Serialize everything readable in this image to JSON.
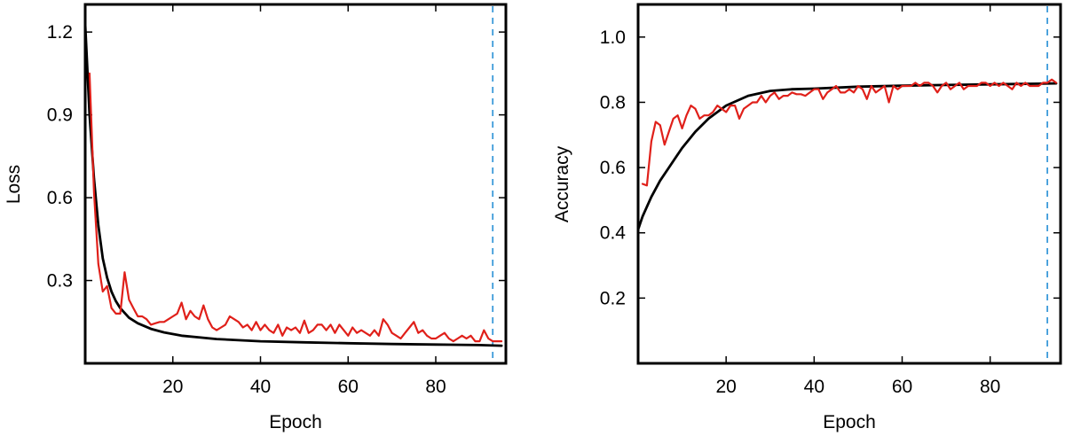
{
  "chart_data": [
    {
      "type": "line",
      "xlabel": "Epoch",
      "ylabel": "Loss",
      "xlim": [
        0,
        96
      ],
      "ylim": [
        0.0,
        1.3
      ],
      "xticks": [
        20,
        40,
        60,
        80
      ],
      "yticks": [
        0.3,
        0.6,
        0.9,
        1.2
      ],
      "vline_x": 93,
      "vline_color": "#3b9ad9",
      "series": [
        {
          "color": "#000000",
          "x": [
            0,
            1,
            2,
            3,
            4,
            5,
            6,
            7,
            8,
            10,
            12,
            15,
            18,
            22,
            30,
            40,
            50,
            60,
            70,
            80,
            90,
            95
          ],
          "values": [
            1.23,
            0.9,
            0.67,
            0.5,
            0.38,
            0.31,
            0.26,
            0.225,
            0.2,
            0.165,
            0.145,
            0.125,
            0.112,
            0.1,
            0.088,
            0.08,
            0.076,
            0.073,
            0.07,
            0.068,
            0.066,
            0.064
          ]
        },
        {
          "color": "#e0201a",
          "x": [
            1,
            2,
            3,
            4,
            5,
            6,
            7,
            8,
            9,
            10,
            11,
            12,
            13,
            14,
            15,
            16,
            17,
            18,
            19,
            20,
            21,
            22,
            23,
            24,
            25,
            26,
            27,
            28,
            29,
            30,
            31,
            32,
            33,
            34,
            35,
            36,
            37,
            38,
            39,
            40,
            41,
            42,
            43,
            44,
            45,
            46,
            47,
            48,
            49,
            50,
            51,
            52,
            53,
            54,
            55,
            56,
            57,
            58,
            59,
            60,
            61,
            62,
            63,
            64,
            65,
            66,
            67,
            68,
            69,
            70,
            71,
            72,
            73,
            74,
            75,
            76,
            77,
            78,
            79,
            80,
            81,
            82,
            83,
            84,
            85,
            86,
            87,
            88,
            89,
            90,
            91,
            92,
            93,
            94,
            95
          ],
          "values": [
            1.05,
            0.62,
            0.36,
            0.26,
            0.28,
            0.2,
            0.18,
            0.18,
            0.33,
            0.23,
            0.2,
            0.17,
            0.17,
            0.16,
            0.14,
            0.145,
            0.15,
            0.15,
            0.16,
            0.17,
            0.18,
            0.22,
            0.16,
            0.19,
            0.17,
            0.16,
            0.21,
            0.16,
            0.13,
            0.12,
            0.13,
            0.14,
            0.17,
            0.16,
            0.15,
            0.13,
            0.14,
            0.12,
            0.15,
            0.12,
            0.14,
            0.12,
            0.11,
            0.14,
            0.1,
            0.13,
            0.12,
            0.13,
            0.11,
            0.155,
            0.11,
            0.12,
            0.14,
            0.14,
            0.12,
            0.14,
            0.11,
            0.14,
            0.12,
            0.1,
            0.13,
            0.11,
            0.12,
            0.11,
            0.1,
            0.12,
            0.1,
            0.16,
            0.14,
            0.11,
            0.1,
            0.09,
            0.11,
            0.13,
            0.15,
            0.11,
            0.12,
            0.1,
            0.09,
            0.09,
            0.1,
            0.11,
            0.09,
            0.08,
            0.09,
            0.1,
            0.09,
            0.1,
            0.08,
            0.08,
            0.12,
            0.09,
            0.08,
            0.08,
            0.08
          ]
        }
      ]
    },
    {
      "type": "line",
      "xlabel": "Epoch",
      "ylabel": "Accuracy",
      "xlim": [
        0,
        96
      ],
      "ylim": [
        0.0,
        1.1
      ],
      "xticks": [
        20,
        40,
        60,
        80
      ],
      "yticks": [
        0.2,
        0.4,
        0.6,
        0.8,
        1.0
      ],
      "vline_x": 93,
      "vline_color": "#3b9ad9",
      "series": [
        {
          "color": "#000000",
          "x": [
            0,
            1,
            2,
            3,
            5,
            7,
            10,
            13,
            16,
            20,
            25,
            30,
            35,
            40,
            50,
            60,
            70,
            80,
            90,
            95
          ],
          "values": [
            0.41,
            0.45,
            0.48,
            0.51,
            0.56,
            0.6,
            0.66,
            0.71,
            0.75,
            0.79,
            0.82,
            0.835,
            0.84,
            0.842,
            0.848,
            0.851,
            0.853,
            0.855,
            0.857,
            0.858
          ]
        },
        {
          "color": "#e0201a",
          "x": [
            1,
            2,
            3,
            4,
            5,
            6,
            7,
            8,
            9,
            10,
            11,
            12,
            13,
            14,
            15,
            16,
            17,
            18,
            19,
            20,
            21,
            22,
            23,
            24,
            25,
            26,
            27,
            28,
            29,
            30,
            31,
            32,
            33,
            34,
            35,
            36,
            37,
            38,
            39,
            40,
            41,
            42,
            43,
            44,
            45,
            46,
            47,
            48,
            49,
            50,
            51,
            52,
            53,
            54,
            55,
            56,
            57,
            58,
            59,
            60,
            61,
            62,
            63,
            64,
            65,
            66,
            67,
            68,
            69,
            70,
            71,
            72,
            73,
            74,
            75,
            76,
            77,
            78,
            79,
            80,
            81,
            82,
            83,
            84,
            85,
            86,
            87,
            88,
            89,
            90,
            91,
            92,
            93,
            94,
            95
          ],
          "values": [
            0.55,
            0.545,
            0.68,
            0.74,
            0.73,
            0.67,
            0.71,
            0.75,
            0.76,
            0.72,
            0.76,
            0.79,
            0.78,
            0.75,
            0.76,
            0.76,
            0.77,
            0.79,
            0.78,
            0.77,
            0.79,
            0.79,
            0.75,
            0.78,
            0.79,
            0.8,
            0.8,
            0.82,
            0.8,
            0.82,
            0.83,
            0.81,
            0.82,
            0.82,
            0.83,
            0.825,
            0.825,
            0.82,
            0.83,
            0.84,
            0.84,
            0.81,
            0.83,
            0.84,
            0.85,
            0.83,
            0.83,
            0.84,
            0.83,
            0.85,
            0.84,
            0.81,
            0.85,
            0.83,
            0.84,
            0.85,
            0.8,
            0.85,
            0.84,
            0.85,
            0.85,
            0.85,
            0.86,
            0.85,
            0.86,
            0.86,
            0.85,
            0.83,
            0.85,
            0.86,
            0.84,
            0.85,
            0.86,
            0.84,
            0.85,
            0.85,
            0.85,
            0.86,
            0.86,
            0.85,
            0.86,
            0.85,
            0.86,
            0.85,
            0.84,
            0.86,
            0.85,
            0.86,
            0.85,
            0.85,
            0.85,
            0.86,
            0.86,
            0.87,
            0.86
          ]
        }
      ]
    }
  ]
}
